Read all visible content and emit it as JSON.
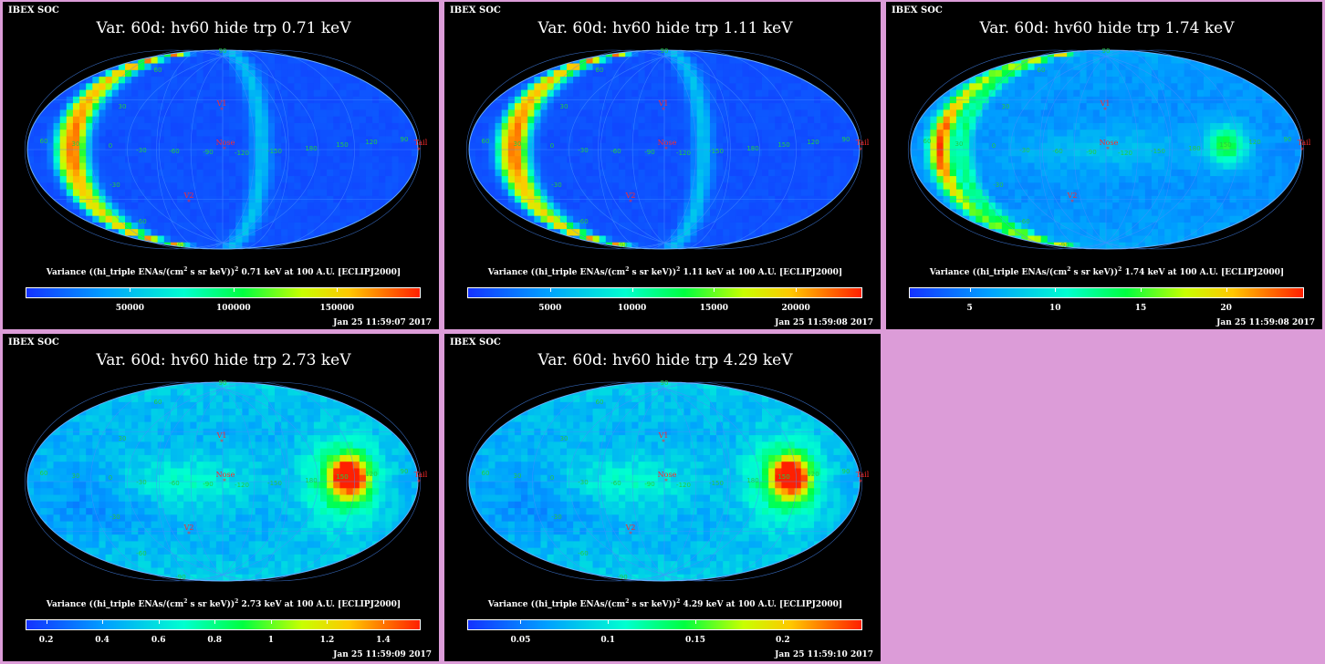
{
  "colors": {
    "background": "#dc9cd8",
    "panel": "#000000",
    "grid": "#4a8fff",
    "marker": "#ff2a2a"
  },
  "chart_data": [
    {
      "type": "heatmap",
      "header": "IBEX SOC",
      "title": "Var. 60d: hv60 hide trp 0.71 keV",
      "colorbar_label": "Variance ((hi_triple ENAs/(cm",
      "colorbar_label_mid": " s sr keV))",
      "colorbar_label_end": " 0.71 keV at 100 A.U. [ECLIPJ2000]",
      "colorbar_ticks": [
        "50000",
        "100000",
        "150000"
      ],
      "colorbar_tick_values": [
        50000,
        100000,
        150000
      ],
      "colorbar_range": [
        0,
        190000
      ],
      "timestamp": "Jan 25 11:59:07 2017",
      "map_style": "ribbon"
    },
    {
      "type": "heatmap",
      "header": "IBEX SOC",
      "title": "Var. 60d: hv60 hide trp 1.11 keV",
      "colorbar_label": "Variance ((hi_triple ENAs/(cm",
      "colorbar_label_mid": " s sr keV))",
      "colorbar_label_end": " 1.11 keV at 100 A.U. [ECLIPJ2000]",
      "colorbar_ticks": [
        "5000",
        "10000",
        "15000",
        "20000"
      ],
      "colorbar_tick_values": [
        5000,
        10000,
        15000,
        20000
      ],
      "colorbar_range": [
        0,
        24000
      ],
      "timestamp": "Jan 25 11:59:08 2017",
      "map_style": "ribbon"
    },
    {
      "type": "heatmap",
      "header": "IBEX SOC",
      "title": "Var. 60d: hv60 hide trp 1.74 keV",
      "colorbar_label": "Variance ((hi_triple ENAs/(cm",
      "colorbar_label_mid": " s sr keV))",
      "colorbar_label_end": " 1.74 keV at 100 A.U. [ECLIPJ2000]",
      "colorbar_ticks": [
        "5",
        "10",
        "15",
        "20"
      ],
      "colorbar_tick_values": [
        5,
        10,
        15,
        20
      ],
      "colorbar_range": [
        1.5,
        24.5
      ],
      "timestamp": "Jan 25 11:59:08 2017",
      "map_style": "mixed"
    },
    {
      "type": "heatmap",
      "header": "IBEX SOC",
      "title": "Var. 60d: hv60 hide trp 2.73 keV",
      "colorbar_label": "Variance ((hi_triple ENAs/(cm",
      "colorbar_label_mid": " s sr keV))",
      "colorbar_label_end": " 2.73 keV at 100 A.U. [ECLIPJ2000]",
      "colorbar_ticks": [
        "0.2",
        "0.4",
        "0.6",
        "0.8",
        "1",
        "1.2",
        "1.4"
      ],
      "colorbar_tick_values": [
        0.2,
        0.4,
        0.6,
        0.8,
        1.0,
        1.2,
        1.4
      ],
      "colorbar_range": [
        0.13,
        1.53
      ],
      "timestamp": "Jan 25 11:59:09 2017",
      "map_style": "diffuse"
    },
    {
      "type": "heatmap",
      "header": "IBEX SOC",
      "title": "Var. 60d: hv60 hide trp 4.29 keV",
      "colorbar_label": "Variance ((hi_triple ENAs/(cm",
      "colorbar_label_mid": " s sr keV))",
      "colorbar_label_end": " 4.29 keV at 100 A.U. [ECLIPJ2000]",
      "colorbar_ticks": [
        "0.05",
        "0.1",
        "0.15",
        "0.2"
      ],
      "colorbar_tick_values": [
        0.05,
        0.1,
        0.15,
        0.2
      ],
      "colorbar_range": [
        0.02,
        0.245
      ],
      "timestamp": "Jan 25 11:59:10 2017",
      "map_style": "diffuse"
    }
  ],
  "map_labels": {
    "longitudes": [
      "60",
      "30",
      "0",
      "-30",
      "-60",
      "-90",
      "-120",
      "-150",
      "180",
      "150",
      "120",
      "90"
    ],
    "latitudes": [
      "60",
      "30",
      "-30",
      "-60"
    ],
    "pole_top": "90",
    "pole_bottom": "-90",
    "markers": {
      "v1": "V1",
      "v2": "V2",
      "nose": "Nose",
      "tail": "Tail"
    }
  }
}
